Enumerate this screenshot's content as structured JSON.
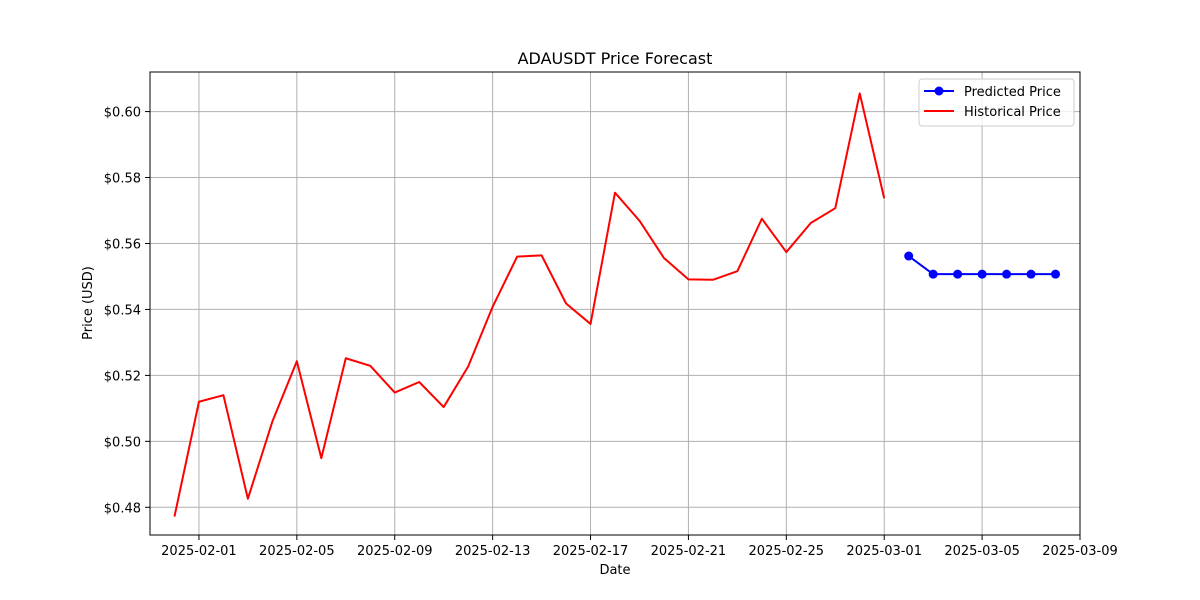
{
  "chart_data": {
    "type": "line",
    "title": "ADAUSDT Price Forecast",
    "xlabel": "Date",
    "ylabel": "Price (USD)",
    "x_axis": {
      "type": "date",
      "range": [
        "2025-01-30",
        "2025-03-09"
      ],
      "tick_labels": [
        "2025-02-01",
        "2025-02-05",
        "2025-02-09",
        "2025-02-13",
        "2025-02-17",
        "2025-02-21",
        "2025-02-25",
        "2025-03-01",
        "2025-03-05",
        "2025-03-09"
      ]
    },
    "y_axis": {
      "range": [
        0.4716,
        0.612
      ],
      "ticks": [
        0.48,
        0.5,
        0.52,
        0.54,
        0.56,
        0.58,
        0.6
      ],
      "tick_labels": [
        "$0.48",
        "$0.50",
        "$0.52",
        "$0.54",
        "$0.56",
        "$0.58",
        "$0.60"
      ]
    },
    "grid": true,
    "legend_position": "top-right",
    "series": [
      {
        "name": "Predicted Price",
        "color": "#0000ff",
        "marker": "circle",
        "points": [
          [
            "2025-03-02",
            0.5562
          ],
          [
            "2025-03-03",
            0.5507
          ],
          [
            "2025-03-04",
            0.5507
          ],
          [
            "2025-03-05",
            0.5507
          ],
          [
            "2025-03-06",
            0.5507
          ],
          [
            "2025-03-07",
            0.5507
          ],
          [
            "2025-03-08",
            0.5507
          ]
        ]
      },
      {
        "name": "Historical Price",
        "color": "#ff0000",
        "marker": "none",
        "points": [
          [
            "2025-01-31",
            0.4772
          ],
          [
            "2025-02-01",
            0.512
          ],
          [
            "2025-02-02",
            0.514
          ],
          [
            "2025-02-03",
            0.4826
          ],
          [
            "2025-02-04",
            0.506
          ],
          [
            "2025-02-05",
            0.5243
          ],
          [
            "2025-02-06",
            0.4949
          ],
          [
            "2025-02-07",
            0.5252
          ],
          [
            "2025-02-08",
            0.5229
          ],
          [
            "2025-02-09",
            0.5148
          ],
          [
            "2025-02-10",
            0.518
          ],
          [
            "2025-02-11",
            0.5104
          ],
          [
            "2025-02-12",
            0.5227
          ],
          [
            "2025-02-13",
            0.5408
          ],
          [
            "2025-02-14",
            0.556
          ],
          [
            "2025-02-15",
            0.5564
          ],
          [
            "2025-02-16",
            0.5418
          ],
          [
            "2025-02-17",
            0.5356
          ],
          [
            "2025-02-18",
            0.5754
          ],
          [
            "2025-02-19",
            0.5669
          ],
          [
            "2025-02-20",
            0.5556
          ],
          [
            "2025-02-21",
            0.5491
          ],
          [
            "2025-02-22",
            0.549
          ],
          [
            "2025-02-23",
            0.5516
          ],
          [
            "2025-02-24",
            0.5675
          ],
          [
            "2025-02-25",
            0.5574
          ],
          [
            "2025-02-26",
            0.5662
          ],
          [
            "2025-02-27",
            0.5707
          ],
          [
            "2025-02-28",
            0.6055
          ],
          [
            "2025-03-01",
            0.5737
          ]
        ]
      }
    ]
  }
}
